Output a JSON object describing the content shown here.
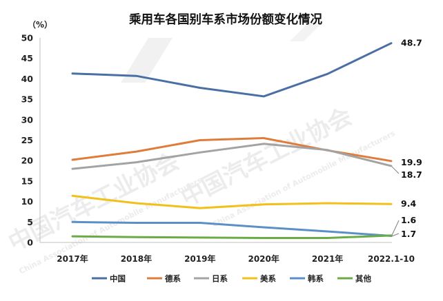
{
  "chart_data": {
    "type": "line",
    "title": "乘用车各国别车系市场份额变化情况",
    "unit": "（%）",
    "categories": [
      "2017年",
      "2018年",
      "2019年",
      "2020年",
      "2021年",
      "2022.1-10"
    ],
    "ylim": [
      0,
      50
    ],
    "yticks": [
      0,
      5,
      10,
      15,
      20,
      25,
      30,
      35,
      40,
      45,
      50
    ],
    "grid": false,
    "legend": "bottom",
    "series": [
      {
        "name": "中国",
        "color": "#4a6fa5",
        "values": [
          41.3,
          40.7,
          37.8,
          35.7,
          41.2,
          48.7
        ],
        "end_label": "48.7"
      },
      {
        "name": "德系",
        "color": "#de7c3b",
        "values": [
          20.2,
          22.2,
          25.0,
          25.5,
          22.5,
          19.9
        ],
        "end_label": "19.9"
      },
      {
        "name": "日系",
        "color": "#a3a3a3",
        "values": [
          18.0,
          19.6,
          22.0,
          24.1,
          22.6,
          18.7
        ],
        "end_label": "18.7"
      },
      {
        "name": "美系",
        "color": "#f2c018",
        "values": [
          11.4,
          9.6,
          8.4,
          9.3,
          9.6,
          9.4
        ],
        "end_label": "9.4"
      },
      {
        "name": "韩系",
        "color": "#5b8fc7",
        "values": [
          5.0,
          4.8,
          4.8,
          3.7,
          2.7,
          1.6
        ],
        "end_label": "1.6"
      },
      {
        "name": "其他",
        "color": "#6aab46",
        "values": [
          1.5,
          1.3,
          1.2,
          1.1,
          1.1,
          1.7
        ],
        "end_label": "1.7"
      }
    ]
  },
  "watermarks": [
    {
      "text": "中国汽车工业协会",
      "role": "watermark"
    },
    {
      "text": "China Association of Automobile Manufacturers",
      "role": "watermark"
    }
  ]
}
